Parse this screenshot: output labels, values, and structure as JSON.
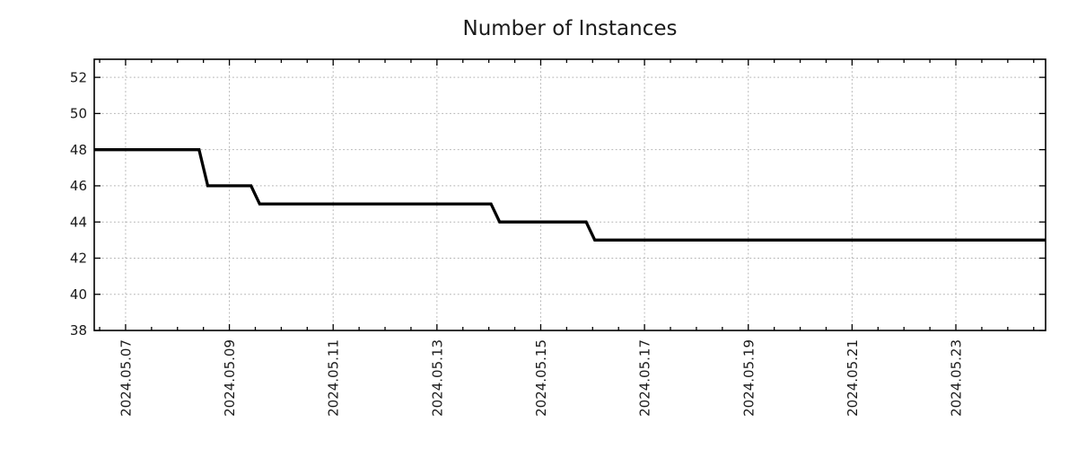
{
  "title": "Number of Instances",
  "colors": {
    "background": "#ffffff",
    "axis_border": "#000000",
    "grid": "#b3b3b3",
    "line": "#000000",
    "text": "#1a1a1a"
  },
  "chart_data": {
    "type": "line",
    "title": "Number of Instances",
    "xlabel": "",
    "ylabel": "",
    "grid": true,
    "legend": "none",
    "x_range": [
      "2024.05.06 09:30",
      "2024.05.24 17:30"
    ],
    "y_range": [
      38,
      53
    ],
    "x_tick_labels": [
      "2024.05.07",
      "2024.05.09",
      "2024.05.11",
      "2024.05.13",
      "2024.05.15",
      "2024.05.17",
      "2024.05.19",
      "2024.05.21",
      "2024.05.23"
    ],
    "y_tick_labels": [
      38,
      40,
      42,
      44,
      46,
      48,
      50,
      52
    ],
    "x_minor_tick_hours": 12,
    "series": [
      {
        "name": "Number of Instances",
        "color": "#000000",
        "points": [
          [
            "2024.05.06 09:30",
            48
          ],
          [
            "2024.05.08 10:00",
            48
          ],
          [
            "2024.05.08 14:00",
            46
          ],
          [
            "2024.05.09 10:00",
            46
          ],
          [
            "2024.05.09 14:00",
            45
          ],
          [
            "2024.05.14 01:00",
            45
          ],
          [
            "2024.05.14 05:00",
            44
          ],
          [
            "2024.05.15 21:00",
            44
          ],
          [
            "2024.05.16 01:00",
            43
          ],
          [
            "2024.05.24 17:30",
            43
          ]
        ]
      }
    ]
  }
}
